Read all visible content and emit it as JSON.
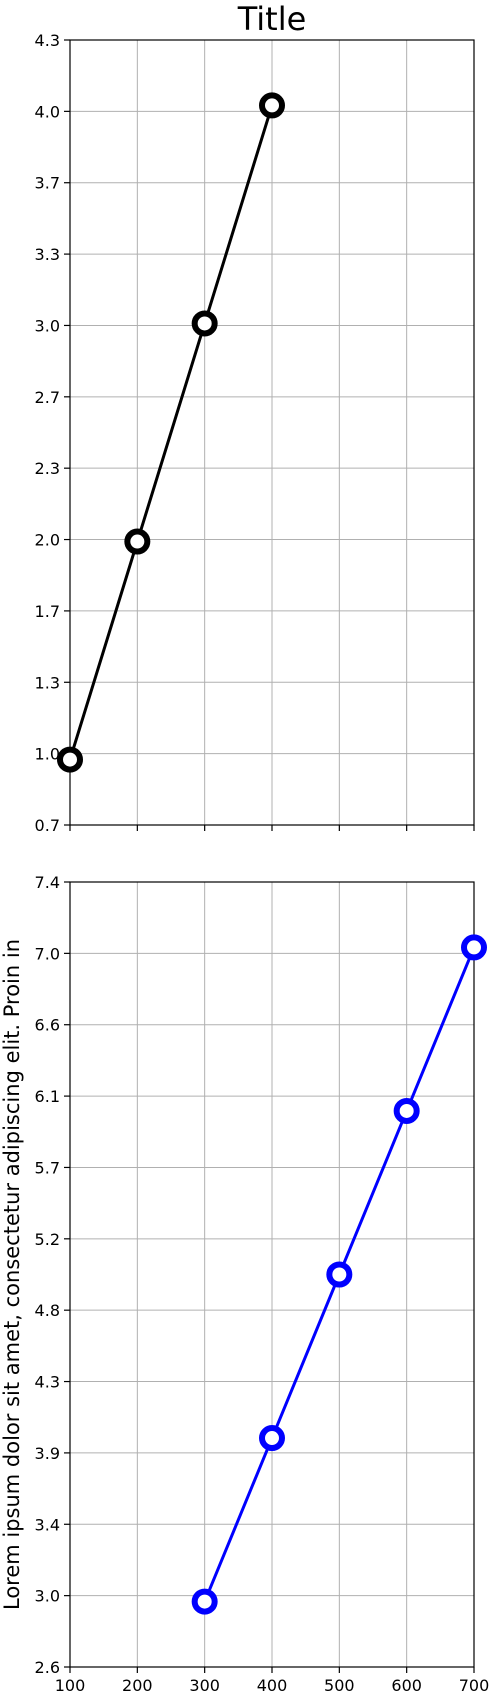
{
  "chart_data": [
    {
      "type": "line",
      "title": "Title",
      "xlabel": "",
      "ylabel": "",
      "xlim": [
        100,
        700
      ],
      "ylim": [
        0.7,
        4.3
      ],
      "yticks": [
        "0.7",
        "1.0",
        "1.3",
        "1.7",
        "2.0",
        "2.3",
        "2.7",
        "3.0",
        "3.3",
        "3.7",
        "4.0",
        "4.3"
      ],
      "xticks": [],
      "grid": true,
      "series": [
        {
          "x": [
            100,
            200,
            300,
            400
          ],
          "y": [
            1.0,
            2.0,
            3.0,
            4.0
          ],
          "color": "#000000"
        }
      ]
    },
    {
      "type": "line",
      "title": "",
      "xlabel": "",
      "ylabel": "Lorem ipsum dolor sit amet, consectetur adipiscing elit. Proin in",
      "xlim": [
        100,
        700
      ],
      "ylim": [
        2.6,
        7.4
      ],
      "yticks": [
        "2.6",
        "3.0",
        "3.4",
        "3.9",
        "4.3",
        "4.8",
        "5.2",
        "5.7",
        "6.1",
        "6.6",
        "7.0",
        "7.4"
      ],
      "xticks": [
        "100",
        "200",
        "300",
        "400",
        "500",
        "600",
        "700"
      ],
      "grid": true,
      "series": [
        {
          "x": [
            300,
            400,
            500,
            600,
            700
          ],
          "y": [
            3.0,
            4.0,
            5.0,
            6.0,
            7.0
          ],
          "color": "#0000ff"
        }
      ]
    }
  ]
}
